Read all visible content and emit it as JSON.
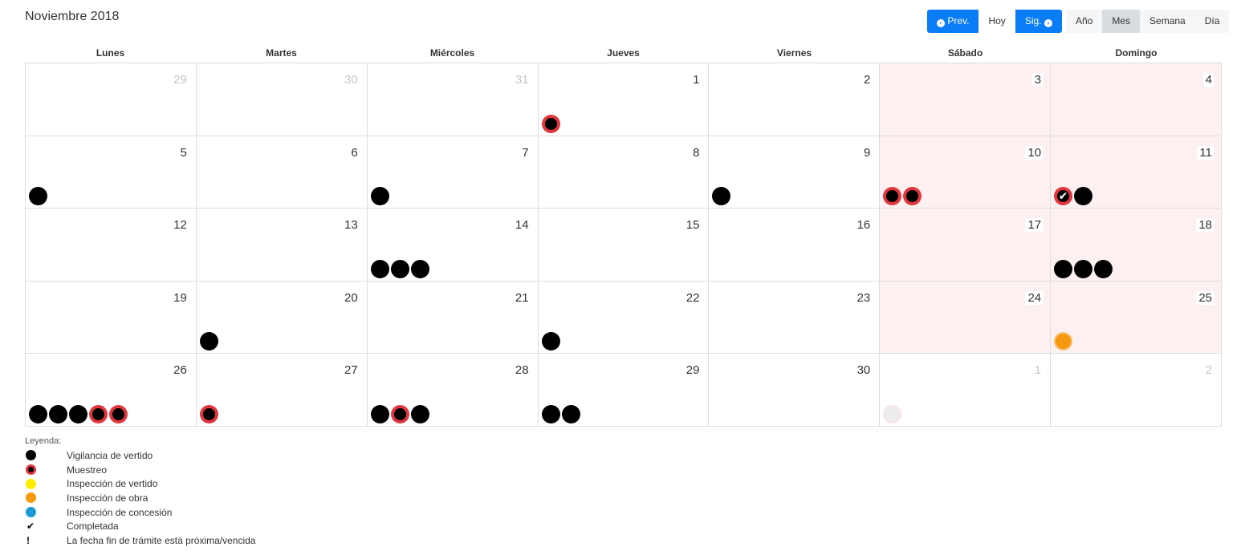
{
  "header": {
    "title": "Noviembre 2018"
  },
  "nav": {
    "prev": "Prev.",
    "today": "Hoy",
    "next": "Sig."
  },
  "views": [
    {
      "label": "Año",
      "active": false
    },
    {
      "label": "Mes",
      "active": true
    },
    {
      "label": "Semana",
      "active": false
    },
    {
      "label": "Día",
      "active": false
    }
  ],
  "weekdays": [
    "Lunes",
    "Martes",
    "Miércoles",
    "Jueves",
    "Viernes",
    "Sábado",
    "Domingo"
  ],
  "colors": {
    "primary": "#0a7cf5",
    "weekend_bg": "#fdf0f0",
    "vigilancia": "#000000",
    "muestreo": "#e0363d",
    "inspeccion_vertido": "#ffee00",
    "inspeccion_obra": "#f59a10",
    "inspeccion_concesion": "#1b9ad6"
  },
  "weeks": [
    [
      {
        "day": "29",
        "other": true,
        "events": []
      },
      {
        "day": "30",
        "other": true,
        "events": []
      },
      {
        "day": "31",
        "other": true,
        "events": []
      },
      {
        "day": "1",
        "events": [
          "mue"
        ]
      },
      {
        "day": "2",
        "events": []
      },
      {
        "day": "3",
        "events": []
      },
      {
        "day": "4",
        "events": []
      }
    ],
    [
      {
        "day": "5",
        "events": [
          "vig"
        ]
      },
      {
        "day": "6",
        "events": []
      },
      {
        "day": "7",
        "events": [
          "vig"
        ]
      },
      {
        "day": "8",
        "events": []
      },
      {
        "day": "9",
        "events": [
          "vig"
        ]
      },
      {
        "day": "10",
        "events": [
          "mue",
          "mue"
        ]
      },
      {
        "day": "11",
        "events": [
          "mue-done",
          "vig"
        ]
      }
    ],
    [
      {
        "day": "12",
        "events": []
      },
      {
        "day": "13",
        "events": []
      },
      {
        "day": "14",
        "events": [
          "vig",
          "vig",
          "vig"
        ]
      },
      {
        "day": "15",
        "events": []
      },
      {
        "day": "16",
        "events": []
      },
      {
        "day": "17",
        "events": []
      },
      {
        "day": "18",
        "events": [
          "vig",
          "vig",
          "vig"
        ]
      }
    ],
    [
      {
        "day": "19",
        "events": []
      },
      {
        "day": "20",
        "events": [
          "vig"
        ]
      },
      {
        "day": "21",
        "events": []
      },
      {
        "day": "22",
        "events": [
          "vig"
        ]
      },
      {
        "day": "23",
        "events": []
      },
      {
        "day": "24",
        "events": []
      },
      {
        "day": "25",
        "events": [
          "obra"
        ]
      }
    ],
    [
      {
        "day": "26",
        "events": [
          "vig",
          "vig",
          "vig",
          "mue",
          "mue"
        ]
      },
      {
        "day": "27",
        "events": [
          "mue"
        ]
      },
      {
        "day": "28",
        "events": [
          "vig",
          "mue",
          "vig"
        ]
      },
      {
        "day": "29",
        "events": [
          "vig",
          "vig"
        ]
      },
      {
        "day": "30",
        "events": []
      },
      {
        "day": "1",
        "other": true,
        "events": [
          "faded"
        ]
      },
      {
        "day": "2",
        "other": true,
        "events": []
      }
    ]
  ],
  "legend": {
    "title": "Leyenda:",
    "items": [
      {
        "symbol": "dot-vig",
        "label": "Vigilancia de vertido"
      },
      {
        "symbol": "dot-mue",
        "label": "Muestreo"
      },
      {
        "symbol": "dot-vertido",
        "label": "Inspección de vertido"
      },
      {
        "symbol": "dot-obra",
        "label": "Inspección de obra"
      },
      {
        "symbol": "dot-concesion",
        "label": "Inspección de concesión"
      },
      {
        "symbol": "check-icon",
        "label": "Completada"
      },
      {
        "symbol": "exclamation-icon",
        "label": "La fecha fin de trámite está próxima/vencida"
      }
    ]
  }
}
